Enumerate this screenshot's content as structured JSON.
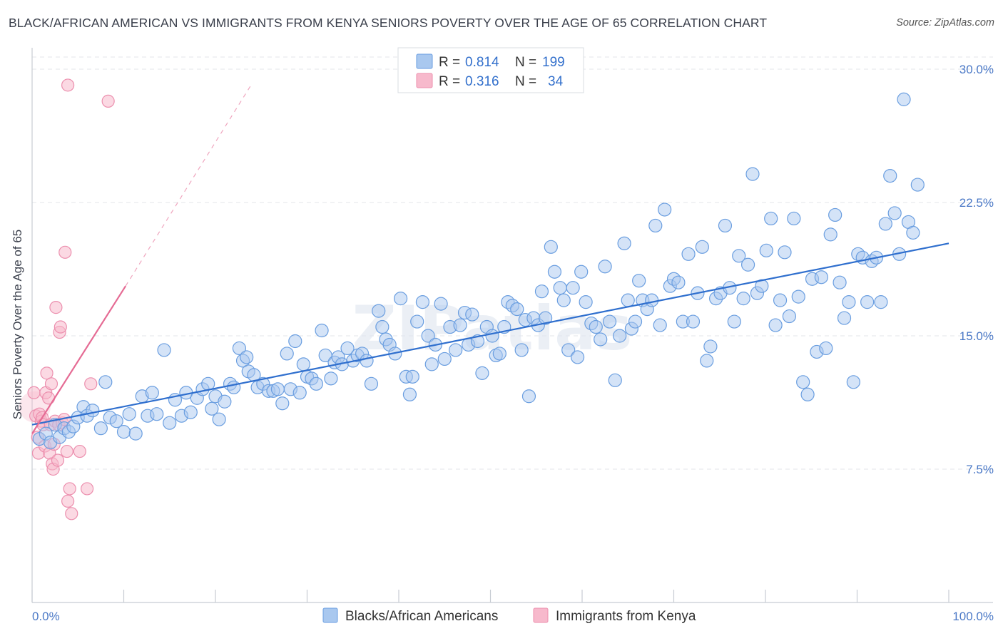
{
  "title": "BLACK/AFRICAN AMERICAN VS IMMIGRANTS FROM KENYA SENIORS POVERTY OVER THE AGE OF 65 CORRELATION CHART",
  "source": "Source: ZipAtlas.com",
  "watermark": "ZIPatlas",
  "legend": {
    "series1": {
      "r_label": "R =",
      "r_value": "0.814",
      "n_label": "N =",
      "n_value": "199"
    },
    "series2": {
      "r_label": "R =",
      "r_value": "0.316",
      "n_label": "N =",
      "n_value": "34"
    }
  },
  "colors": {
    "blue_fill": "#a9c8ef",
    "blue_stroke": "#6a9ee0",
    "blue_line": "#2f6fce",
    "pink_fill": "#f7b9cc",
    "pink_stroke": "#ec8fae",
    "pink_line": "#e56b94",
    "tick_text": "#4a78c6",
    "grid": "#e3e6ea"
  },
  "chart_data": {
    "type": "scatter",
    "title": "BLACK/AFRICAN AMERICAN VS IMMIGRANTS FROM KENYA SENIORS POVERTY OVER THE AGE OF 65 CORRELATION CHART",
    "xlabel": "",
    "ylabel": "Seniors Poverty Over the Age of 65",
    "xlim": [
      0,
      100
    ],
    "ylim": [
      0,
      31.5
    ],
    "y_ticks": [
      7.5,
      15.0,
      22.5,
      30.0
    ],
    "y_tick_labels": [
      "7.5%",
      "15.0%",
      "22.5%",
      "30.0%"
    ],
    "x_tick_labels": [
      "0.0%",
      "100.0%"
    ],
    "grid": true,
    "legend_placement": "top-center",
    "series": [
      {
        "name": "Blacks/African Americans",
        "r": 0.814,
        "n": 199,
        "trend": {
          "x0": 0,
          "y0": 10.0,
          "x1": 100,
          "y1": 20.2
        },
        "points": [
          [
            0.8,
            9.2
          ],
          [
            1.5,
            9.5
          ],
          [
            2.0,
            9.0
          ],
          [
            2.5,
            10.0
          ],
          [
            3.0,
            9.3
          ],
          [
            3.5,
            9.8
          ],
          [
            4.0,
            9.6
          ],
          [
            4.5,
            9.9
          ],
          [
            5.0,
            10.4
          ],
          [
            5.6,
            11.0
          ],
          [
            6.0,
            10.5
          ],
          [
            6.6,
            10.8
          ],
          [
            7.5,
            9.8
          ],
          [
            8.0,
            12.4
          ],
          [
            8.5,
            10.4
          ],
          [
            9.2,
            10.2
          ],
          [
            10.0,
            9.6
          ],
          [
            10.6,
            10.6
          ],
          [
            11.3,
            9.5
          ],
          [
            12.0,
            11.6
          ],
          [
            12.6,
            10.5
          ],
          [
            13.1,
            11.8
          ],
          [
            13.6,
            10.6
          ],
          [
            14.4,
            14.2
          ],
          [
            15.0,
            10.1
          ],
          [
            15.6,
            11.4
          ],
          [
            16.3,
            10.5
          ],
          [
            16.8,
            11.8
          ],
          [
            17.3,
            10.7
          ],
          [
            18.0,
            11.5
          ],
          [
            18.6,
            12.0
          ],
          [
            19.2,
            12.3
          ],
          [
            19.6,
            10.9
          ],
          [
            20.0,
            11.6
          ],
          [
            20.4,
            10.3
          ],
          [
            21.0,
            11.3
          ],
          [
            21.6,
            12.3
          ],
          [
            22.0,
            12.1
          ],
          [
            22.6,
            14.3
          ],
          [
            23.0,
            13.6
          ],
          [
            23.4,
            13.8
          ],
          [
            23.6,
            13.0
          ],
          [
            24.2,
            12.8
          ],
          [
            24.6,
            12.1
          ],
          [
            25.2,
            12.3
          ],
          [
            25.8,
            11.9
          ],
          [
            26.3,
            11.9
          ],
          [
            26.8,
            12.0
          ],
          [
            27.3,
            11.2
          ],
          [
            27.8,
            14.0
          ],
          [
            28.2,
            12.0
          ],
          [
            28.7,
            14.7
          ],
          [
            29.2,
            11.8
          ],
          [
            29.6,
            13.4
          ],
          [
            30.0,
            12.7
          ],
          [
            30.5,
            12.6
          ],
          [
            31.0,
            12.3
          ],
          [
            31.6,
            15.3
          ],
          [
            32.0,
            13.9
          ],
          [
            32.6,
            12.6
          ],
          [
            33.0,
            13.5
          ],
          [
            33.4,
            13.8
          ],
          [
            33.8,
            13.4
          ],
          [
            34.4,
            14.3
          ],
          [
            35.0,
            13.6
          ],
          [
            35.5,
            13.9
          ],
          [
            36.0,
            14.0
          ],
          [
            36.5,
            13.6
          ],
          [
            37.0,
            12.3
          ],
          [
            37.8,
            16.4
          ],
          [
            38.2,
            15.5
          ],
          [
            38.6,
            14.8
          ],
          [
            39.0,
            14.5
          ],
          [
            39.6,
            14.0
          ],
          [
            40.2,
            17.1
          ],
          [
            40.8,
            12.7
          ],
          [
            41.2,
            11.7
          ],
          [
            41.5,
            12.7
          ],
          [
            42.0,
            15.8
          ],
          [
            42.6,
            16.9
          ],
          [
            43.2,
            15.0
          ],
          [
            43.6,
            13.4
          ],
          [
            44.0,
            14.5
          ],
          [
            44.6,
            16.8
          ],
          [
            45.0,
            13.7
          ],
          [
            45.6,
            15.5
          ],
          [
            46.2,
            14.2
          ],
          [
            46.7,
            15.6
          ],
          [
            47.2,
            16.3
          ],
          [
            47.6,
            14.5
          ],
          [
            48.0,
            16.2
          ],
          [
            48.6,
            14.7
          ],
          [
            49.1,
            12.9
          ],
          [
            49.6,
            15.5
          ],
          [
            50.2,
            15.0
          ],
          [
            50.6,
            13.9
          ],
          [
            51.0,
            14.0
          ],
          [
            51.5,
            15.5
          ],
          [
            51.9,
            16.9
          ],
          [
            52.4,
            16.7
          ],
          [
            52.9,
            16.5
          ],
          [
            53.4,
            14.2
          ],
          [
            53.8,
            15.9
          ],
          [
            54.2,
            11.6
          ],
          [
            54.7,
            16.0
          ],
          [
            55.2,
            15.6
          ],
          [
            55.6,
            17.5
          ],
          [
            56.0,
            16.0
          ],
          [
            56.6,
            20.0
          ],
          [
            57.0,
            18.6
          ],
          [
            57.6,
            17.7
          ],
          [
            58.0,
            17.0
          ],
          [
            58.5,
            14.2
          ],
          [
            59.0,
            17.7
          ],
          [
            59.5,
            13.8
          ],
          [
            59.9,
            18.6
          ],
          [
            60.4,
            16.9
          ],
          [
            61.0,
            15.7
          ],
          [
            61.5,
            15.5
          ],
          [
            62.0,
            14.8
          ],
          [
            62.5,
            18.9
          ],
          [
            63.0,
            15.8
          ],
          [
            63.6,
            12.5
          ],
          [
            64.1,
            15.0
          ],
          [
            64.6,
            20.2
          ],
          [
            65.0,
            17.0
          ],
          [
            65.4,
            15.4
          ],
          [
            65.8,
            15.8
          ],
          [
            66.2,
            18.1
          ],
          [
            66.6,
            17.0
          ],
          [
            67.1,
            16.5
          ],
          [
            67.6,
            17.0
          ],
          [
            68.0,
            21.2
          ],
          [
            68.5,
            15.6
          ],
          [
            69.0,
            22.1
          ],
          [
            69.6,
            17.8
          ],
          [
            70.0,
            18.2
          ],
          [
            70.5,
            18.0
          ],
          [
            71.0,
            15.8
          ],
          [
            71.6,
            19.6
          ],
          [
            72.1,
            15.8
          ],
          [
            72.6,
            17.4
          ],
          [
            73.1,
            20.0
          ],
          [
            73.6,
            13.6
          ],
          [
            74.0,
            14.4
          ],
          [
            74.6,
            17.1
          ],
          [
            75.1,
            17.4
          ],
          [
            75.6,
            21.2
          ],
          [
            76.1,
            17.7
          ],
          [
            76.6,
            15.8
          ],
          [
            77.1,
            19.5
          ],
          [
            77.6,
            17.1
          ],
          [
            78.1,
            19.0
          ],
          [
            78.6,
            24.1
          ],
          [
            79.1,
            17.4
          ],
          [
            79.6,
            17.8
          ],
          [
            80.1,
            19.8
          ],
          [
            80.6,
            21.6
          ],
          [
            81.1,
            15.6
          ],
          [
            81.6,
            17.0
          ],
          [
            82.1,
            19.7
          ],
          [
            82.6,
            16.1
          ],
          [
            83.1,
            21.6
          ],
          [
            83.6,
            17.2
          ],
          [
            84.1,
            12.4
          ],
          [
            84.6,
            11.7
          ],
          [
            85.1,
            18.2
          ],
          [
            85.6,
            14.1
          ],
          [
            86.1,
            18.3
          ],
          [
            86.6,
            14.3
          ],
          [
            87.1,
            20.7
          ],
          [
            87.6,
            21.8
          ],
          [
            88.1,
            18.0
          ],
          [
            88.6,
            16.0
          ],
          [
            89.1,
            16.9
          ],
          [
            89.6,
            12.4
          ],
          [
            90.1,
            19.6
          ],
          [
            90.6,
            19.4
          ],
          [
            91.1,
            16.9
          ],
          [
            91.6,
            19.2
          ],
          [
            92.1,
            19.4
          ],
          [
            92.6,
            16.9
          ],
          [
            93.1,
            21.3
          ],
          [
            93.6,
            24.0
          ],
          [
            94.1,
            21.9
          ],
          [
            94.6,
            19.6
          ],
          [
            95.1,
            28.3
          ],
          [
            95.6,
            21.4
          ],
          [
            96.1,
            20.8
          ],
          [
            96.6,
            23.5
          ]
        ]
      },
      {
        "name": "Immigrants from Kenya",
        "r": 0.316,
        "n": 34,
        "trend": {
          "x0": 0,
          "y0": 9.5,
          "x1": 10.2,
          "y1": 17.8
        },
        "trend_dashed": {
          "x0": 10.2,
          "y0": 17.8,
          "x1": 24.0,
          "y1": 29.2
        },
        "points": [
          [
            0.2,
            11.8
          ],
          [
            0.4,
            10.5
          ],
          [
            0.6,
            9.3
          ],
          [
            0.7,
            8.4
          ],
          [
            0.8,
            10.6
          ],
          [
            1.0,
            10.2
          ],
          [
            1.1,
            10.4
          ],
          [
            1.2,
            10.0
          ],
          [
            1.4,
            8.8
          ],
          [
            1.5,
            11.8
          ],
          [
            1.6,
            12.9
          ],
          [
            1.8,
            11.5
          ],
          [
            1.9,
            8.4
          ],
          [
            2.0,
            10.0
          ],
          [
            2.1,
            12.3
          ],
          [
            2.2,
            7.8
          ],
          [
            2.3,
            7.5
          ],
          [
            2.4,
            8.9
          ],
          [
            2.5,
            10.2
          ],
          [
            2.6,
            16.6
          ],
          [
            2.8,
            8.0
          ],
          [
            2.9,
            10.0
          ],
          [
            3.0,
            15.2
          ],
          [
            3.1,
            15.5
          ],
          [
            3.3,
            10.1
          ],
          [
            3.5,
            10.3
          ],
          [
            3.6,
            19.7
          ],
          [
            3.8,
            8.5
          ],
          [
            3.9,
            5.7
          ],
          [
            4.1,
            6.4
          ],
          [
            4.3,
            5.0
          ],
          [
            5.2,
            8.5
          ],
          [
            6.0,
            6.4
          ],
          [
            6.4,
            12.3
          ]
        ],
        "outliers": [
          [
            3.9,
            29.1
          ],
          [
            8.3,
            28.2
          ]
        ]
      }
    ]
  },
  "bottom_legend": {
    "item1": "Blacks/African Americans",
    "item2": "Immigrants from Kenya"
  }
}
